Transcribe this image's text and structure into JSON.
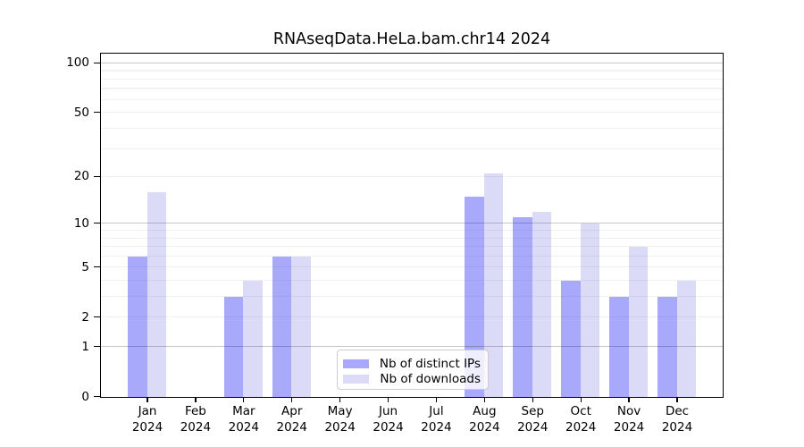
{
  "chart_data": {
    "type": "bar",
    "title": "RNAseqData.HeLa.bam.chr14 2024",
    "xlabel": "",
    "ylabel": "",
    "yscale": "log1p",
    "ylim": [
      0,
      115
    ],
    "grid": "on",
    "legend_position": "bottom-center-inside",
    "categories": [
      "Jan 2024",
      "Feb 2024",
      "Mar 2024",
      "Apr 2024",
      "May 2024",
      "Jun 2024",
      "Jul 2024",
      "Aug 2024",
      "Sep 2024",
      "Oct 2024",
      "Nov 2024",
      "Dec 2024"
    ],
    "series": [
      {
        "name": "Nb of distinct IPs",
        "color": "#a9a9fb",
        "values": [
          6,
          0,
          3,
          6,
          0,
          0,
          0,
          15,
          11,
          4,
          3,
          3
        ]
      },
      {
        "name": "Nb of downloads",
        "color": "#dbdbf8",
        "values": [
          16,
          0,
          4,
          6,
          0,
          0,
          0,
          21,
          12,
          10,
          7,
          4
        ]
      }
    ],
    "ytick_labels": [
      "0",
      "1",
      "2",
      "5",
      "10",
      "20",
      "50",
      "100"
    ],
    "yticks": [
      0,
      1,
      2,
      5,
      10,
      20,
      50,
      100
    ],
    "grid_major_values": [
      1,
      10,
      100
    ],
    "grid_minor_values": [
      2,
      3,
      4,
      5,
      6,
      7,
      8,
      9,
      20,
      30,
      40,
      50,
      60,
      70,
      80,
      90
    ]
  },
  "colors": {
    "bar_distinct_ips": "#a9a9fb",
    "bar_downloads": "#dbdbf8",
    "grid_major": "#c7c7c7",
    "grid_minor": "#f0f0f0",
    "spine": "#000000",
    "legend_border": "#cccccc"
  }
}
